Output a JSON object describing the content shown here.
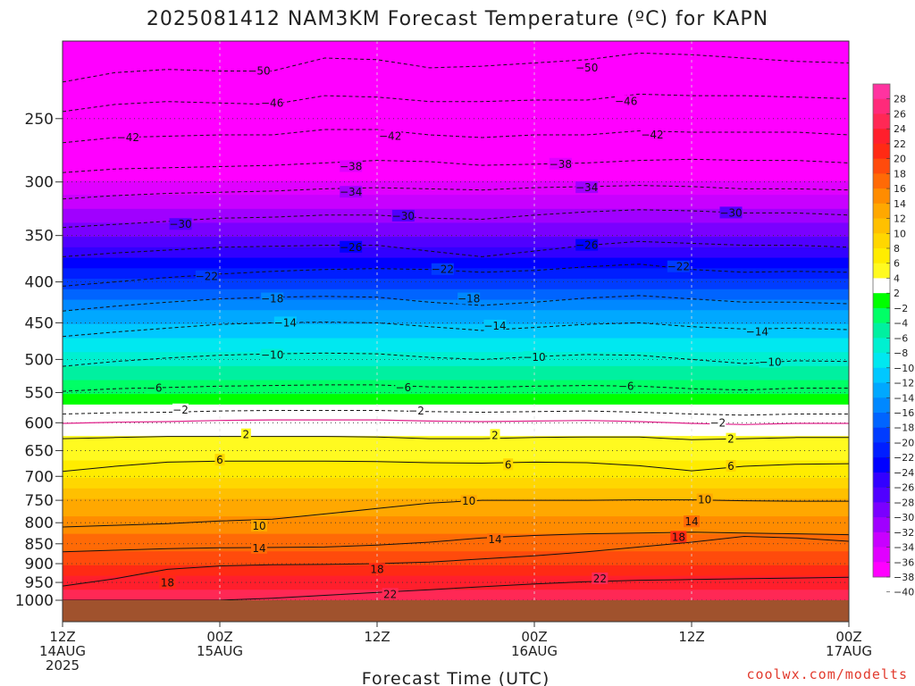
{
  "chart_data": {
    "type": "heatmap",
    "title": "2025081412 NAM3KM Forecast Temperature (ºC) for KAPN",
    "xlabel": "Forecast Time (UTC)",
    "ylabel": "",
    "x_ticks": [
      {
        "hour": 0,
        "label": [
          "12Z",
          "14AUG",
          "2025"
        ]
      },
      {
        "hour": 12,
        "label": [
          "00Z",
          "15AUG"
        ]
      },
      {
        "hour": 24,
        "label": [
          "12Z"
        ]
      },
      {
        "hour": 36,
        "label": [
          "00Z",
          "16AUG"
        ]
      },
      {
        "hour": 48,
        "label": [
          "12Z"
        ]
      },
      {
        "hour": 60,
        "label": [
          "00Z",
          "17AUG"
        ]
      }
    ],
    "xlim": [
      0,
      60
    ],
    "y_ticks": [
      250,
      300,
      350,
      400,
      450,
      500,
      550,
      600,
      650,
      700,
      750,
      800,
      850,
      900,
      950,
      1000
    ],
    "ylim": [
      200,
      1000
    ],
    "y_scale": "log-pressure",
    "colorbar": {
      "ticks": [
        28,
        26,
        24,
        22,
        20,
        18,
        16,
        14,
        12,
        10,
        8,
        6,
        4,
        2,
        -2,
        -4,
        -6,
        -8,
        -10,
        -12,
        -14,
        -16,
        -18,
        -20,
        -22,
        -24,
        -26,
        -28,
        -30,
        -32,
        -34,
        -36,
        -38,
        -40
      ],
      "colors": [
        "#ff33a0",
        "#ff2a7a",
        "#ff2855",
        "#ff1f2c",
        "#ff2a14",
        "#ff4b0c",
        "#ff6a06",
        "#ff8c00",
        "#ffa800",
        "#ffc000",
        "#ffd700",
        "#ffec00",
        "#fffa20",
        "#ffffff",
        "#00ff00",
        "#00ff66",
        "#00f0a0",
        "#00f0d0",
        "#00e8f0",
        "#00c8ff",
        "#00a8ff",
        "#0088ff",
        "#0064ff",
        "#003cff",
        "#001eff",
        "#0000ff",
        "#3200ff",
        "#5000ff",
        "#7a00ff",
        "#a000ff",
        "#c800ff",
        "#e000ff",
        "#ff00ff"
      ]
    },
    "profile_levels": [
      200,
      250,
      300,
      350,
      400,
      450,
      500,
      550,
      600,
      650,
      700,
      750,
      800,
      850,
      900,
      950,
      1000
    ],
    "profile_temps": [
      -54,
      -46,
      -38,
      -30,
      -21,
      -14,
      -9,
      -4,
      1,
      3,
      6,
      10,
      13,
      15,
      18,
      21,
      23
    ],
    "contours": [
      {
        "level": -50,
        "p": [
          225,
          219,
          217,
          218,
          218,
          210,
          211,
          216,
          215,
          213,
          211,
          207,
          208,
          210,
          212,
          213
        ],
        "labels": [
          [
            15,
            218
          ],
          [
            40,
            216
          ]
        ]
      },
      {
        "level": -46,
        "p": [
          245,
          240,
          238,
          239,
          240,
          234,
          235,
          238,
          238,
          237,
          237,
          233,
          234,
          234,
          235,
          236
        ],
        "labels": [
          [
            16,
            239
          ],
          [
            43,
            238
          ]
        ]
      },
      {
        "level": -42,
        "p": [
          268,
          264,
          263,
          262,
          262,
          258,
          258,
          262,
          264,
          262,
          262,
          259,
          260,
          260,
          260,
          262
        ],
        "labels": [
          [
            5,
            264
          ],
          [
            25,
            263
          ],
          [
            45,
            262
          ]
        ]
      },
      {
        "level": -38,
        "p": [
          292,
          289,
          288,
          287,
          286,
          284,
          282,
          283,
          286,
          285,
          284,
          282,
          281,
          282,
          282,
          284
        ],
        "labels": [
          [
            22,
            287
          ],
          [
            38,
            285
          ]
        ]
      },
      {
        "level": -34,
        "p": [
          315,
          312,
          310,
          309,
          308,
          306,
          305,
          306,
          307,
          305,
          304,
          303,
          304,
          306,
          306,
          307
        ],
        "labels": [
          [
            22,
            309
          ],
          [
            40,
            305
          ]
        ]
      },
      {
        "level": -30,
        "p": [
          342,
          339,
          336,
          333,
          332,
          330,
          330,
          333,
          334,
          330,
          327,
          325,
          326,
          328,
          328,
          330
        ],
        "labels": [
          [
            9,
            339
          ],
          [
            26,
            331
          ],
          [
            51,
            328
          ]
        ]
      },
      {
        "level": -26,
        "p": [
          372,
          368,
          365,
          362,
          361,
          360,
          360,
          366,
          372,
          366,
          360,
          356,
          358,
          360,
          360,
          362
        ],
        "labels": [
          [
            22,
            362
          ],
          [
            40,
            360
          ]
        ]
      },
      {
        "level": -22,
        "p": [
          405,
          400,
          395,
          391,
          388,
          386,
          385,
          386,
          389,
          387,
          383,
          380,
          386,
          389,
          388,
          389
        ],
        "labels": [
          [
            11,
            394
          ],
          [
            29,
            386
          ],
          [
            47,
            383
          ]
        ]
      },
      {
        "level": -18,
        "p": [
          435,
          429,
          424,
          420,
          418,
          417,
          418,
          424,
          428,
          424,
          419,
          416,
          420,
          424,
          424,
          426
        ],
        "labels": [
          [
            16,
            420
          ],
          [
            31,
            420
          ]
        ]
      },
      {
        "level": -14,
        "p": [
          468,
          462,
          457,
          452,
          450,
          449,
          450,
          455,
          460,
          456,
          452,
          450,
          455,
          458,
          457,
          459
        ],
        "labels": [
          [
            17,
            450
          ],
          [
            33,
            454
          ],
          [
            53,
            462
          ]
        ]
      },
      {
        "level": -10,
        "p": [
          510,
          503,
          498,
          494,
          492,
          491,
          492,
          497,
          500,
          496,
          493,
          494,
          500,
          506,
          502,
          503
        ],
        "labels": [
          [
            16,
            494
          ],
          [
            36,
            497
          ],
          [
            54,
            504
          ]
        ]
      },
      {
        "level": -6,
        "p": [
          548,
          544,
          542,
          540,
          539,
          538,
          538,
          541,
          542,
          540,
          539,
          540,
          544,
          546,
          543,
          543
        ],
        "labels": [
          [
            7,
            543
          ],
          [
            26,
            542
          ],
          [
            43,
            540
          ]
        ]
      },
      {
        "level": -2,
        "p": [
          585,
          583,
          582,
          580,
          579,
          579,
          579,
          581,
          582,
          581,
          580,
          582,
          585,
          587,
          585,
          585
        ],
        "labels": [
          [
            9,
            578
          ],
          [
            27,
            580
          ],
          [
            50,
            600
          ]
        ]
      },
      {
        "level": 2,
        "p": [
          628,
          626,
          624,
          624,
          624,
          624,
          625,
          628,
          628,
          626,
          625,
          625,
          630,
          628,
          626,
          626
        ],
        "labels": [
          [
            14,
            621
          ],
          [
            33,
            622
          ],
          [
            51,
            629
          ]
        ]
      },
      {
        "level": 6,
        "p": [
          690,
          680,
          672,
          670,
          670,
          670,
          671,
          673,
          674,
          672,
          673,
          679,
          689,
          680,
          676,
          675
        ],
        "labels": [
          [
            12,
            668
          ],
          [
            34,
            677
          ],
          [
            51,
            680
          ]
        ]
      },
      {
        "level": 10,
        "p": [
          810,
          806,
          802,
          796,
          792,
          780,
          768,
          756,
          750,
          750,
          750,
          749,
          749,
          751,
          752,
          752
        ],
        "labels": [
          [
            15,
            808
          ],
          [
            31,
            752
          ],
          [
            49,
            749
          ]
        ]
      },
      {
        "level": 14,
        "p": [
          870,
          866,
          862,
          860,
          859,
          858,
          853,
          846,
          836,
          830,
          826,
          824,
          822,
          824,
          826,
          828
        ],
        "labels": [
          [
            15,
            861
          ],
          [
            33,
            840
          ],
          [
            48,
            798
          ]
        ]
      },
      {
        "level": 18,
        "p": [
          960,
          940,
          915,
          906,
          903,
          902,
          900,
          896,
          888,
          880,
          870,
          858,
          846,
          832,
          836,
          844
        ],
        "labels": [
          [
            8,
            951
          ],
          [
            24,
            915
          ],
          [
            47,
            834
          ]
        ]
      },
      {
        "level": 22,
        "p": [
          1000,
          1000,
          1000,
          1000,
          994,
          986,
          978,
          970,
          962,
          954,
          948,
          944,
          942,
          940,
          938,
          936
        ],
        "labels": [
          [
            25,
            983
          ],
          [
            41,
            940
          ]
        ]
      }
    ]
  },
  "credit": "coolwx.com/modelts"
}
